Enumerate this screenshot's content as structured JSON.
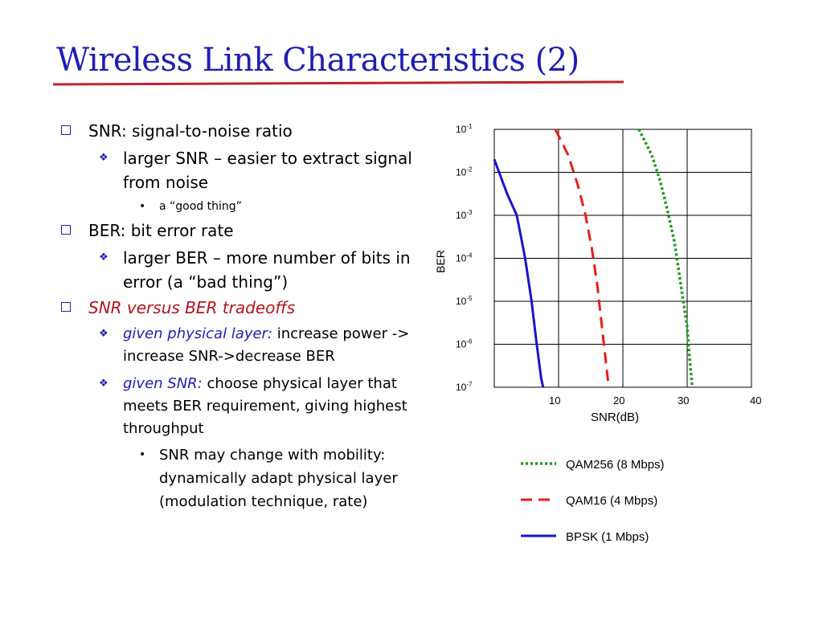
{
  "title": "Wireless Link Characteristics (2)",
  "bullets": {
    "snr": "SNR: signal-to-noise ratio",
    "snr_sub": "larger SNR – easier to extract signal from noise",
    "snr_subsub": "a “good thing”",
    "ber": "BER: bit error rate",
    "ber_sub": "larger BER – more number of bits in error (a “bad thing”)",
    "tradeoff": "SNR versus BER tradeoffs",
    "tradeoff_sub1_em": "given physical layer:",
    "tradeoff_sub1_rest": " increase power -> increase SNR->decrease BER",
    "tradeoff_sub2_em": "given SNR:",
    "tradeoff_sub2_rest": " choose physical layer that meets BER requirement, giving highest throughput",
    "tradeoff_subsub": "SNR may change with mobility: dynamically adapt physical layer (modulation technique, rate)"
  },
  "chart_data": {
    "type": "line",
    "xlabel": "SNR(dB)",
    "ylabel": "BER",
    "xlim": [
      0,
      40
    ],
    "y_log_exponents": [
      -1,
      -7
    ],
    "x_ticks": [
      "10",
      "20",
      "30",
      "40"
    ],
    "y_ticks": [
      {
        "base": "10",
        "exp": "-1"
      },
      {
        "base": "10",
        "exp": "-2"
      },
      {
        "base": "10",
        "exp": "-3"
      },
      {
        "base": "10",
        "exp": "-4"
      },
      {
        "base": "10",
        "exp": "-5"
      },
      {
        "base": "10",
        "exp": "-6"
      },
      {
        "base": "10",
        "exp": "-7"
      }
    ],
    "grid": true,
    "legend_position": "bottom",
    "series": [
      {
        "name": "QAM256 (8 Mbps)",
        "color": "#1a9a1a",
        "style": "dotted",
        "points": [
          [
            22.5,
            -1.0
          ],
          [
            24.5,
            -1.6
          ],
          [
            25.8,
            -2.2
          ],
          [
            26.8,
            -2.8
          ],
          [
            28.0,
            -3.6
          ],
          [
            29.0,
            -4.6
          ],
          [
            30.0,
            -5.6
          ],
          [
            30.3,
            -6.2
          ],
          [
            30.8,
            -7.0
          ]
        ]
      },
      {
        "name": "QAM16 (4 Mbps)",
        "color": "#e81c1c",
        "style": "dashed",
        "points": [
          [
            9.5,
            -1.0
          ],
          [
            11.5,
            -1.6
          ],
          [
            13.0,
            -2.3
          ],
          [
            14.2,
            -3.0
          ],
          [
            15.2,
            -3.8
          ],
          [
            16.0,
            -4.6
          ],
          [
            16.6,
            -5.4
          ],
          [
            17.2,
            -6.2
          ],
          [
            17.8,
            -7.0
          ]
        ]
      },
      {
        "name": "BPSK (1 Mbps)",
        "color": "#1515cc",
        "style": "solid",
        "points": [
          [
            0.0,
            -1.7
          ],
          [
            2.0,
            -2.5
          ],
          [
            3.5,
            -3.0
          ],
          [
            4.8,
            -4.0
          ],
          [
            5.8,
            -5.0
          ],
          [
            6.6,
            -6.0
          ],
          [
            7.3,
            -6.8
          ],
          [
            7.6,
            -7.0
          ]
        ]
      }
    ]
  }
}
